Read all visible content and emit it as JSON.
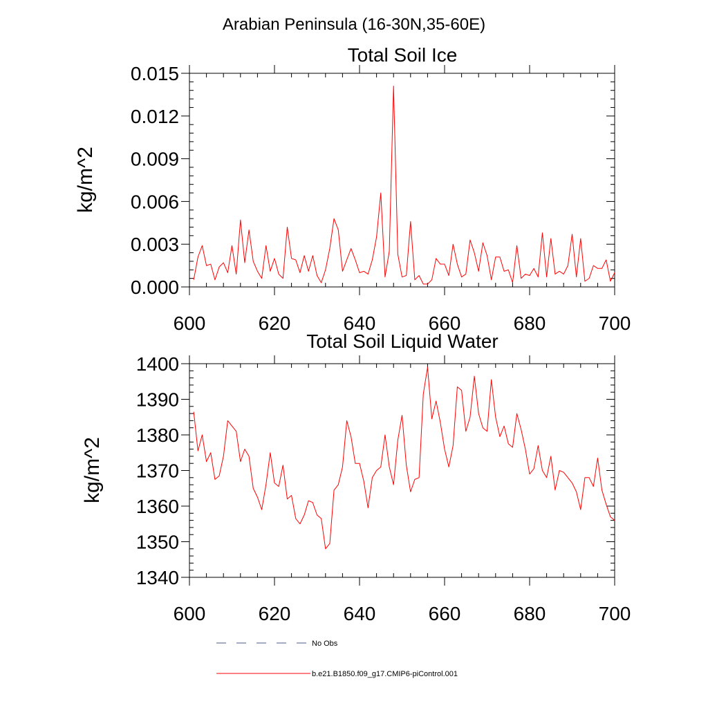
{
  "suptitle": "Arabian Peninsula (16-30N,35-60E)",
  "line_color": "#ff0000",
  "obs_color": "#4a5a8a",
  "legend": [
    {
      "label": "No Obs",
      "style": "dashed",
      "color": "#4a5a8a"
    },
    {
      "label": "b.e21.B1850.f09_g17.CMIP6-piControl.001",
      "style": "solid",
      "color": "#ff0000"
    }
  ],
  "chart_data": [
    {
      "type": "line",
      "title": "Total Soil Ice",
      "xlabel": "",
      "ylabel": "kg/m^2",
      "xlim": [
        600,
        700
      ],
      "ylim": [
        0,
        0.015
      ],
      "xticks": [
        600,
        620,
        640,
        660,
        680,
        700
      ],
      "xtick_labels": [
        "600",
        "620",
        "640",
        "660",
        "680",
        "700"
      ],
      "yticks": [
        0,
        0.003,
        0.006,
        0.009,
        0.012,
        0.015
      ],
      "ytick_labels": [
        "0.000",
        "0.003",
        "0.006",
        "0.009",
        "0.012",
        "0.015"
      ],
      "x_start": 601,
      "x_step": 1,
      "series": [
        {
          "name": "b.e21.B1850.f09_g17.CMIP6-piControl.001",
          "values": [
            0.0005,
            0.0021,
            0.0029,
            0.0015,
            0.0016,
            0.0005,
            0.0014,
            0.0017,
            0.001,
            0.0029,
            0.0009,
            0.0047,
            0.0017,
            0.004,
            0.0018,
            0.0011,
            0.0006,
            0.0029,
            0.0011,
            0.002,
            0.0009,
            0.0006,
            0.0042,
            0.002,
            0.0019,
            0.001,
            0.0022,
            0.0011,
            0.0022,
            0.0008,
            0.0003,
            0.0012,
            0.0027,
            0.0048,
            0.004,
            0.0011,
            0.0019,
            0.0027,
            0.0019,
            0.001,
            0.0011,
            0.0009,
            0.0019,
            0.0035,
            0.0066,
            0.0007,
            0.0025,
            0.0141,
            0.0023,
            0.0007,
            0.0008,
            0.0046,
            0.0005,
            0.0008,
            0.0002,
            0.0002,
            0.0005,
            0.002,
            0.0016,
            0.0016,
            0.0008,
            0.003,
            0.0016,
            0.0007,
            0.0009,
            0.0033,
            0.0024,
            0.0011,
            0.0031,
            0.0022,
            0.0005,
            0.0021,
            0.0021,
            0.0011,
            0.0012,
            0.0003,
            0.0029,
            0.0006,
            0.0009,
            0.0008,
            0.0013,
            0.0007,
            0.0038,
            0.0007,
            0.0034,
            0.0009,
            0.0011,
            0.0009,
            0.0015,
            0.0037,
            0.0007,
            0.0034,
            0.0004,
            0.0006,
            0.0015,
            0.0013,
            0.0013,
            0.0019,
            0.0004,
            0.001
          ]
        }
      ]
    },
    {
      "type": "line",
      "title": "Total Soil Liquid Water",
      "xlabel": "",
      "ylabel": "kg/m^2",
      "xlim": [
        600,
        700
      ],
      "ylim": [
        1340,
        1400
      ],
      "xticks": [
        600,
        620,
        640,
        660,
        680,
        700
      ],
      "xtick_labels": [
        "600",
        "620",
        "640",
        "660",
        "680",
        "700"
      ],
      "yticks": [
        1340,
        1350,
        1360,
        1370,
        1380,
        1390,
        1400
      ],
      "ytick_labels": [
        "1340",
        "1350",
        "1360",
        "1370",
        "1380",
        "1390",
        "1400"
      ],
      "x_start": 601,
      "x_step": 1,
      "series": [
        {
          "name": "b.e21.B1850.f09_g17.CMIP6-piControl.001",
          "values": [
            1386.5,
            1375.5,
            1380,
            1372.5,
            1375,
            1367.5,
            1368.5,
            1374,
            1384,
            1382.5,
            1381,
            1372.5,
            1376,
            1374,
            1365,
            1362.5,
            1359,
            1366,
            1375,
            1366.5,
            1365.5,
            1371.5,
            1362,
            1363,
            1356.5,
            1355,
            1357.5,
            1361.5,
            1361,
            1357.5,
            1356.5,
            1348,
            1349.5,
            1364.5,
            1366,
            1371,
            1384,
            1379.5,
            1372,
            1372,
            1367,
            1359.5,
            1368,
            1370,
            1371,
            1380,
            1371,
            1366,
            1378.5,
            1385.5,
            1371.5,
            1364,
            1367.5,
            1368,
            1391.5,
            1399,
            1384.5,
            1389.5,
            1383.5,
            1376,
            1371,
            1377,
            1393.5,
            1392.5,
            1381,
            1385,
            1396.5,
            1386,
            1382,
            1381,
            1395.5,
            1385,
            1379.5,
            1382.5,
            1377.5,
            1376.5,
            1386,
            1381.5,
            1376,
            1369,
            1370.5,
            1377,
            1370,
            1368,
            1374,
            1364.5,
            1370,
            1369.5,
            1368,
            1366.5,
            1364,
            1359,
            1368,
            1368,
            1365.5,
            1373.5,
            1364.5,
            1360.5,
            1357,
            1356
          ]
        }
      ]
    }
  ]
}
